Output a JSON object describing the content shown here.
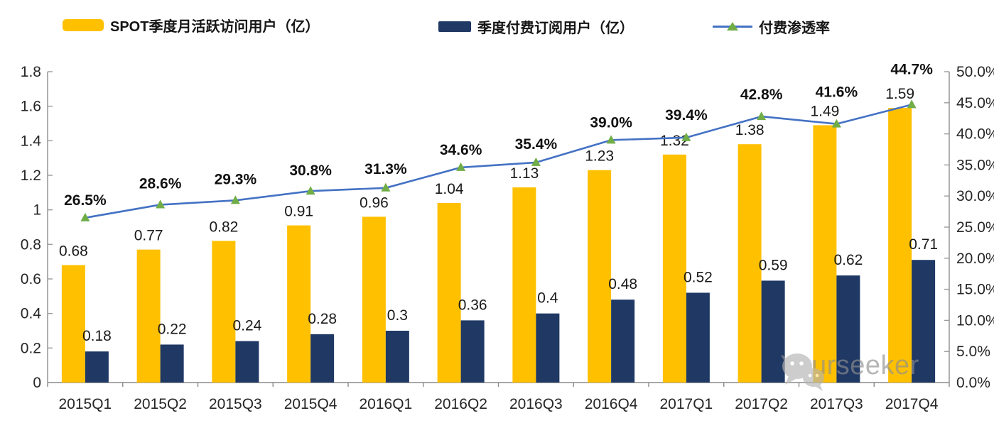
{
  "legend": {
    "items": [
      {
        "label": "SPOT季度月活跃访问用户（亿）",
        "swatch": "bar",
        "color": "#FFC000"
      },
      {
        "label": "季度付费订阅用户（亿）",
        "swatch": "bar",
        "color": "#1F3864"
      },
      {
        "label": "付费渗透率",
        "swatch": "line",
        "color": "#4472C4",
        "marker_color": "#70AD47"
      }
    ]
  },
  "watermark": {
    "text": "Yourseeker",
    "icon": "wechat-logo"
  },
  "chart_data": {
    "type": "combo",
    "categories": [
      "2015Q1",
      "2015Q2",
      "2015Q3",
      "2015Q4",
      "2016Q1",
      "2016Q2",
      "2016Q3",
      "2016Q4",
      "2017Q1",
      "2017Q2",
      "2017Q3",
      "2017Q4"
    ],
    "series": [
      {
        "name": "SPOT季度月活跃访问用户（亿）",
        "type": "bar",
        "axis": "left",
        "color": "#FFC000",
        "values": [
          0.68,
          0.77,
          0.82,
          0.91,
          0.96,
          1.04,
          1.13,
          1.23,
          1.32,
          1.38,
          1.49,
          1.59
        ],
        "labels": [
          "0.68",
          "0.77",
          "0.82",
          "0.91",
          "0.96",
          "1.04",
          "1.13",
          "1.23",
          "1.32",
          "1.38",
          "1.49",
          "1.59"
        ]
      },
      {
        "name": "季度付费订阅用户（亿）",
        "type": "bar",
        "axis": "left",
        "color": "#1F3864",
        "values": [
          0.18,
          0.22,
          0.24,
          0.28,
          0.3,
          0.36,
          0.4,
          0.48,
          0.52,
          0.59,
          0.62,
          0.71
        ],
        "labels": [
          "0.18",
          "0.22",
          "0.24",
          "0.28",
          "0.3",
          "0.36",
          "0.4",
          "0.48",
          "0.52",
          "0.59",
          "0.62",
          "0.71"
        ]
      },
      {
        "name": "付费渗透率",
        "type": "line",
        "axis": "right",
        "color": "#4472C4",
        "marker": "triangle",
        "marker_color": "#70AD47",
        "values": [
          26.5,
          28.6,
          29.3,
          30.8,
          31.3,
          34.6,
          35.4,
          39.0,
          39.4,
          42.8,
          41.6,
          44.7
        ],
        "labels": [
          "26.5%",
          "28.6%",
          "29.3%",
          "30.8%",
          "31.3%",
          "34.6%",
          "35.4%",
          "39.0%",
          "39.4%",
          "42.8%",
          "41.6%",
          "44.7%"
        ]
      }
    ],
    "left_axis": {
      "min": 0,
      "max": 1.8,
      "tick_values": [
        0,
        0.2,
        0.4,
        0.6,
        0.8,
        1,
        1.2,
        1.4,
        1.6,
        1.8
      ],
      "tick_labels": [
        "0",
        "0.2",
        "0.4",
        "0.6",
        "0.8",
        "1",
        "1.2",
        "1.4",
        "1.6",
        "1.8"
      ]
    },
    "right_axis": {
      "min": 0,
      "max": 50,
      "tick_values": [
        0,
        5,
        10,
        15,
        20,
        25,
        30,
        35,
        40,
        45,
        50
      ],
      "tick_labels": [
        "0.0%",
        "5.0%",
        "10.0%",
        "15.0%",
        "20.0%",
        "25.0%",
        "30.0%",
        "35.0%",
        "40.0%",
        "45.0%",
        "50.0%"
      ]
    },
    "grid": false,
    "legend_position": "top"
  }
}
